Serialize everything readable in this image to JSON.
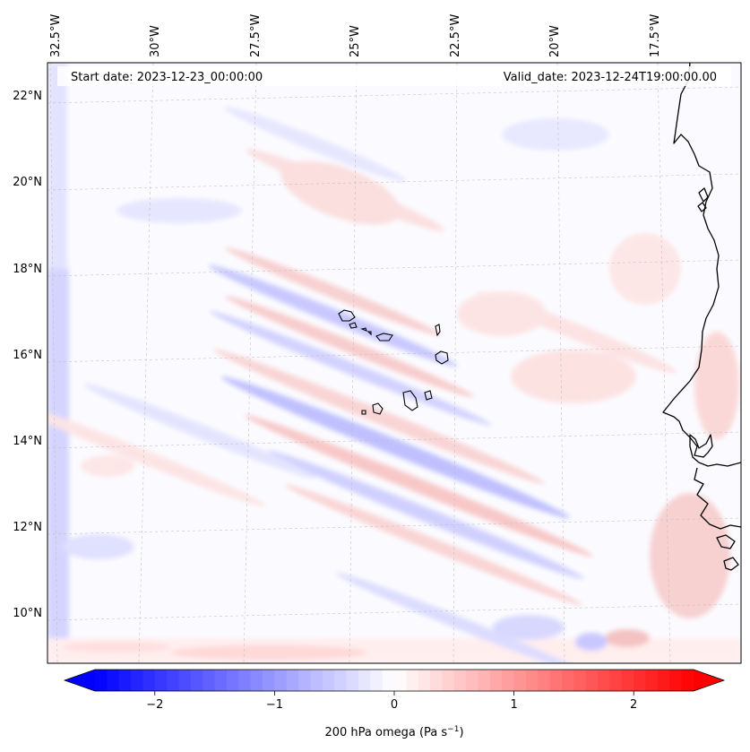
{
  "map": {
    "start_date_label": "Start date: 2023-12-23_00:00:00",
    "valid_date_label": "Valid_date: 2023-12-24T19:00:00.00",
    "lon_labels": [
      "32.5°W",
      "30°W",
      "27.5°W",
      "25°W",
      "22.5°W",
      "20°W",
      "17.5°W"
    ],
    "lat_labels": [
      "22°N",
      "20°N",
      "18°N",
      "16°N",
      "14°N",
      "12°N",
      "10°N"
    ],
    "colors": {
      "negative": "#0000ff",
      "zero": "#ffffff",
      "positive": "#ff0000",
      "coastline": "#000000",
      "gridline": "#b0b0b0"
    }
  },
  "colorbar": {
    "ticks": [
      -2,
      -1,
      0,
      1,
      2
    ],
    "tick_labels": [
      "−2",
      "−1",
      "0",
      "1",
      "2"
    ],
    "range": [
      -2.5,
      2.5
    ],
    "label": "200 hPa omega (Pa s",
    "label_sup": "−1",
    "label_end": ")"
  }
}
